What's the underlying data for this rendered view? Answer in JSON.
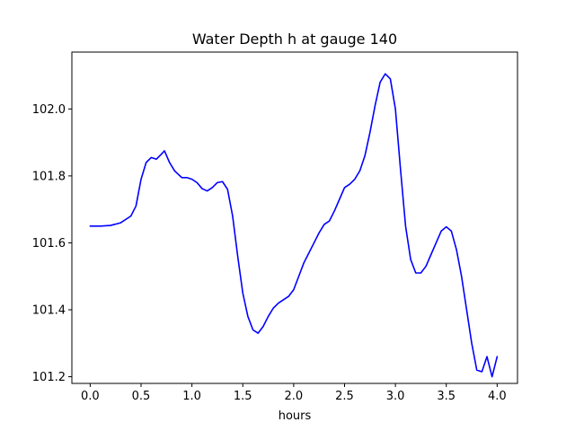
{
  "chart_data": {
    "type": "line",
    "title": "Water Depth h at gauge 140",
    "xlabel": "hours",
    "ylabel": "",
    "xlim": [
      -0.18,
      4.2
    ],
    "ylim": [
      101.18,
      102.17
    ],
    "xticks": [
      0.0,
      0.5,
      1.0,
      1.5,
      2.0,
      2.5,
      3.0,
      3.5,
      4.0
    ],
    "xtick_labels": [
      "0.0",
      "0.5",
      "1.0",
      "1.5",
      "2.0",
      "2.5",
      "3.0",
      "3.5",
      "4.0"
    ],
    "yticks": [
      101.2,
      101.4,
      101.6,
      101.8,
      102.0
    ],
    "ytick_labels": [
      "101.2",
      "101.4",
      "101.6",
      "101.8",
      "102.0"
    ],
    "grid": false,
    "series": [
      {
        "name": "h",
        "color": "#0000ff",
        "x": [
          0.0,
          0.1,
          0.2,
          0.3,
          0.4,
          0.45,
          0.5,
          0.55,
          0.6,
          0.65,
          0.7,
          0.73,
          0.78,
          0.83,
          0.9,
          0.95,
          1.0,
          1.05,
          1.1,
          1.15,
          1.2,
          1.25,
          1.3,
          1.35,
          1.4,
          1.45,
          1.5,
          1.55,
          1.6,
          1.65,
          1.7,
          1.75,
          1.8,
          1.85,
          1.9,
          1.95,
          2.0,
          2.05,
          2.1,
          2.15,
          2.2,
          2.25,
          2.3,
          2.35,
          2.4,
          2.45,
          2.5,
          2.55,
          2.6,
          2.65,
          2.7,
          2.75,
          2.8,
          2.85,
          2.9,
          2.95,
          3.0,
          3.05,
          3.1,
          3.15,
          3.2,
          3.25,
          3.3,
          3.35,
          3.4,
          3.45,
          3.5,
          3.55,
          3.6,
          3.65,
          3.7,
          3.75,
          3.8,
          3.85,
          3.9,
          3.95,
          4.0
        ],
        "y": [
          101.65,
          101.65,
          101.652,
          101.66,
          101.68,
          101.71,
          101.79,
          101.84,
          101.855,
          101.85,
          101.865,
          101.875,
          101.84,
          101.815,
          101.795,
          101.795,
          101.79,
          101.78,
          101.762,
          101.755,
          101.765,
          101.78,
          101.783,
          101.76,
          101.68,
          101.56,
          101.45,
          101.38,
          101.34,
          101.33,
          101.35,
          101.38,
          101.405,
          101.42,
          101.43,
          101.44,
          101.46,
          101.5,
          101.54,
          101.57,
          101.6,
          101.63,
          101.655,
          101.665,
          101.695,
          101.73,
          101.765,
          101.775,
          101.79,
          101.815,
          101.86,
          101.93,
          102.01,
          102.08,
          102.105,
          102.09,
          102.0,
          101.82,
          101.65,
          101.55,
          101.51,
          101.51,
          101.53,
          101.565,
          101.6,
          101.635,
          101.648,
          101.635,
          101.58,
          101.5,
          101.4,
          101.3,
          101.22,
          101.215,
          101.26,
          101.2,
          101.26
        ]
      }
    ]
  }
}
